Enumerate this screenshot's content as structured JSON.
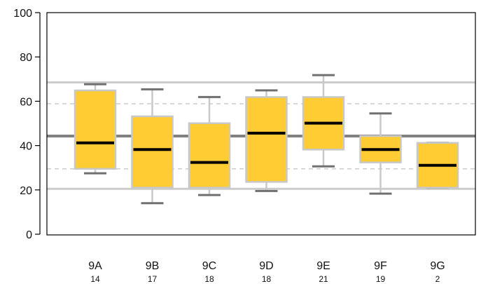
{
  "chart_data": {
    "type": "boxplot",
    "ylim": [
      0,
      100
    ],
    "yticks": [
      0,
      20,
      40,
      60,
      80,
      100
    ],
    "grid": false,
    "reference_lines": {
      "mean": 44.3,
      "upper_solid": 68.5,
      "lower_solid": 20.5,
      "upper_dashed": 58.9,
      "lower_dashed": 29.5
    },
    "categories": [
      "9A",
      "9B",
      "9C",
      "9D",
      "9E",
      "9F",
      "9G"
    ],
    "counts": [
      "14",
      "17",
      "18",
      "18",
      "21",
      "19",
      "2"
    ],
    "boxes": [
      {
        "min": 27.5,
        "q1": 29.5,
        "median": 41.2,
        "q3": 64.9,
        "max": 67.7
      },
      {
        "min": 14.0,
        "q1": 21.0,
        "median": 38.2,
        "q3": 53.2,
        "max": 65.4
      },
      {
        "min": 17.7,
        "q1": 21.0,
        "median": 32.4,
        "q3": 50.1,
        "max": 61.9
      },
      {
        "min": 19.5,
        "q1": 23.6,
        "median": 45.6,
        "q3": 61.9,
        "max": 64.9
      },
      {
        "min": 30.6,
        "q1": 38.2,
        "median": 50.1,
        "q3": 61.9,
        "max": 71.8
      },
      {
        "min": 18.3,
        "q1": 32.4,
        "median": 38.2,
        "q3": 44.3,
        "max": 54.5
      },
      {
        "min": 21.0,
        "q1": 21.0,
        "median": 31.1,
        "q3": 41.2,
        "max": 41.2
      }
    ],
    "colors": {
      "box_fill": "#FFCC33",
      "box_border": "#C8C8C8",
      "median": "#000000",
      "whisker": "#C8C8C8",
      "whisker_cap": "#707070",
      "mean_line": "#808080",
      "band_solid": "#CCCCCC",
      "band_dashed": "#CCCCCC",
      "frame": "#000000"
    }
  }
}
